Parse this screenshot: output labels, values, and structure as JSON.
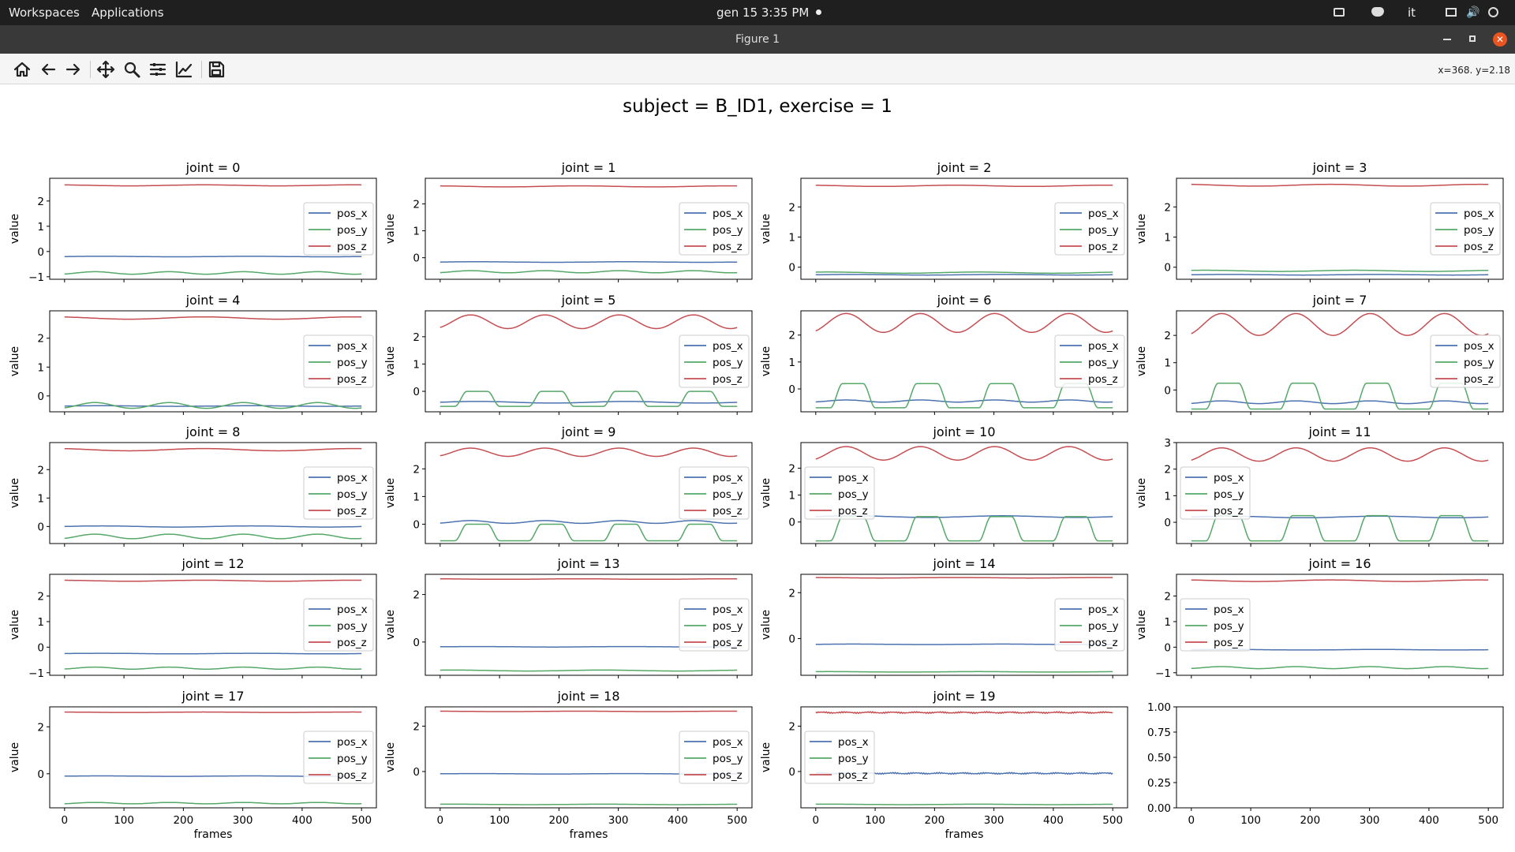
{
  "taskbar": {
    "workspaces": "Workspaces",
    "applications": "Applications",
    "clock": "gen 15   3:35 PM",
    "lang": "it"
  },
  "window": {
    "title": "Figure 1"
  },
  "toolbar": {
    "icons": [
      "home-icon",
      "back-icon",
      "forward-icon",
      "pan-icon",
      "zoom-icon",
      "configure-icon",
      "edit-axis-icon",
      "save-icon"
    ],
    "coords": "x=368. y=2.18"
  },
  "figure_title": "subject = B_ID1, exercise = 1",
  "colors": {
    "pos_x": "#4c72b0",
    "pos_y": "#55a868",
    "pos_z": "#c44e52"
  },
  "chart_data": [
    {
      "type": "line",
      "title": "joint = 0",
      "xlabel": "",
      "ylabel": "value",
      "legend": "right",
      "ylim": [
        -1.1,
        2.9
      ],
      "yticks": [
        -1,
        0,
        1,
        2
      ],
      "xticks": [
        0,
        100,
        200,
        300,
        400,
        500
      ],
      "show_xtick_labels": false,
      "series": [
        {
          "name": "pos_x",
          "pattern": "flat",
          "base": -0.2,
          "amp": 0.01
        },
        {
          "name": "pos_y",
          "pattern": "wave",
          "base": -0.85,
          "amp": 0.05
        },
        {
          "name": "pos_z",
          "pattern": "flat",
          "base": 2.62,
          "amp": 0.02
        }
      ]
    },
    {
      "type": "line",
      "title": "joint = 1",
      "xlabel": "",
      "ylabel": "value",
      "legend": "right",
      "ylim": [
        -0.8,
        2.95
      ],
      "yticks": [
        0,
        1,
        2
      ],
      "xticks": [
        0,
        100,
        200,
        300,
        400,
        500
      ],
      "show_xtick_labels": false,
      "series": [
        {
          "name": "pos_x",
          "pattern": "flat",
          "base": -0.16,
          "amp": 0.01
        },
        {
          "name": "pos_y",
          "pattern": "wave",
          "base": -0.52,
          "amp": 0.04
        },
        {
          "name": "pos_z",
          "pattern": "flat",
          "base": 2.65,
          "amp": 0.02
        }
      ]
    },
    {
      "type": "line",
      "title": "joint = 2",
      "xlabel": "",
      "ylabel": "value",
      "legend": "right",
      "ylim": [
        -0.4,
        2.95
      ],
      "yticks": [
        0,
        1,
        2
      ],
      "xticks": [
        0,
        100,
        200,
        300,
        400,
        500
      ],
      "show_xtick_labels": false,
      "series": [
        {
          "name": "pos_x",
          "pattern": "flat",
          "base": -0.25,
          "amp": 0.01
        },
        {
          "name": "pos_y",
          "pattern": "flat",
          "base": -0.18,
          "amp": 0.02
        },
        {
          "name": "pos_z",
          "pattern": "flat",
          "base": 2.7,
          "amp": 0.02
        }
      ]
    },
    {
      "type": "line",
      "title": "joint = 3",
      "xlabel": "",
      "ylabel": "value",
      "legend": "right",
      "ylim": [
        -0.4,
        2.95
      ],
      "yticks": [
        0,
        1,
        2
      ],
      "xticks": [
        0,
        100,
        200,
        300,
        400,
        500
      ],
      "show_xtick_labels": false,
      "series": [
        {
          "name": "pos_x",
          "pattern": "flat",
          "base": -0.25,
          "amp": 0.01
        },
        {
          "name": "pos_y",
          "pattern": "flat",
          "base": -0.12,
          "amp": 0.02
        },
        {
          "name": "pos_z",
          "pattern": "flat",
          "base": 2.72,
          "amp": 0.03
        }
      ]
    },
    {
      "type": "line",
      "title": "joint = 4",
      "xlabel": "",
      "ylabel": "value",
      "legend": "right",
      "ylim": [
        -0.55,
        2.95
      ],
      "yticks": [
        0,
        1,
        2
      ],
      "xticks": [
        0,
        100,
        200,
        300,
        400,
        500
      ],
      "show_xtick_labels": false,
      "series": [
        {
          "name": "pos_x",
          "pattern": "flat",
          "base": -0.35,
          "amp": 0.01
        },
        {
          "name": "pos_y",
          "pattern": "wave",
          "base": -0.33,
          "amp": 0.1
        },
        {
          "name": "pos_z",
          "pattern": "flat",
          "base": 2.7,
          "amp": 0.04
        }
      ]
    },
    {
      "type": "line",
      "title": "joint = 5",
      "xlabel": "",
      "ylabel": "value",
      "legend": "right",
      "ylim": [
        -0.75,
        2.95
      ],
      "yticks": [
        0,
        1,
        2
      ],
      "xticks": [
        0,
        100,
        200,
        300,
        400,
        500
      ],
      "show_xtick_labels": false,
      "series": [
        {
          "name": "pos_x",
          "pattern": "flat",
          "base": -0.4,
          "amp": 0.03
        },
        {
          "name": "pos_y",
          "pattern": "pulse",
          "base": -0.55,
          "amp": 0.55
        },
        {
          "name": "pos_z",
          "pattern": "wave",
          "base": 2.55,
          "amp": 0.25
        }
      ]
    },
    {
      "type": "line",
      "title": "joint = 6",
      "xlabel": "",
      "ylabel": "value",
      "legend": "right",
      "ylim": [
        -0.85,
        2.9
      ],
      "yticks": [
        0,
        1,
        2
      ],
      "xticks": [
        0,
        100,
        200,
        300,
        400,
        500
      ],
      "show_xtick_labels": false,
      "series": [
        {
          "name": "pos_x",
          "pattern": "wave",
          "base": -0.45,
          "amp": 0.04
        },
        {
          "name": "pos_y",
          "pattern": "pulse",
          "base": -0.7,
          "amp": 0.9
        },
        {
          "name": "pos_z",
          "pattern": "wave",
          "base": 2.45,
          "amp": 0.35
        }
      ]
    },
    {
      "type": "line",
      "title": "joint = 7",
      "xlabel": "",
      "ylabel": "value",
      "legend": "right",
      "ylim": [
        -0.8,
        2.9
      ],
      "yticks": [
        0,
        1,
        2
      ],
      "xticks": [
        0,
        100,
        200,
        300,
        400,
        500
      ],
      "show_xtick_labels": false,
      "series": [
        {
          "name": "pos_x",
          "pattern": "wave",
          "base": -0.45,
          "amp": 0.05
        },
        {
          "name": "pos_y",
          "pattern": "pulse",
          "base": -0.7,
          "amp": 0.95
        },
        {
          "name": "pos_z",
          "pattern": "wave",
          "base": 2.4,
          "amp": 0.4
        }
      ]
    },
    {
      "type": "line",
      "title": "joint = 8",
      "xlabel": "",
      "ylabel": "value",
      "legend": "right",
      "ylim": [
        -0.6,
        2.95
      ],
      "yticks": [
        0,
        1,
        2
      ],
      "xticks": [
        0,
        100,
        200,
        300,
        400,
        500
      ],
      "show_xtick_labels": false,
      "series": [
        {
          "name": "pos_x",
          "pattern": "flat",
          "base": 0.0,
          "amp": 0.02
        },
        {
          "name": "pos_y",
          "pattern": "wave",
          "base": -0.35,
          "amp": 0.08
        },
        {
          "name": "pos_z",
          "pattern": "flat",
          "base": 2.7,
          "amp": 0.04
        }
      ]
    },
    {
      "type": "line",
      "title": "joint = 9",
      "xlabel": "",
      "ylabel": "value",
      "legend": "right",
      "ylim": [
        -0.7,
        2.95
      ],
      "yticks": [
        0,
        1,
        2
      ],
      "xticks": [
        0,
        100,
        200,
        300,
        400,
        500
      ],
      "show_xtick_labels": false,
      "series": [
        {
          "name": "pos_x",
          "pattern": "wave",
          "base": 0.08,
          "amp": 0.05
        },
        {
          "name": "pos_y",
          "pattern": "pulse",
          "base": -0.6,
          "amp": 0.6
        },
        {
          "name": "pos_z",
          "pattern": "wave",
          "base": 2.6,
          "amp": 0.15
        }
      ]
    },
    {
      "type": "line",
      "title": "joint = 10",
      "xlabel": "",
      "ylabel": "value",
      "legend": "left",
      "ylim": [
        -0.8,
        2.95
      ],
      "yticks": [
        0,
        1,
        2
      ],
      "xticks": [
        0,
        100,
        200,
        300,
        400,
        500
      ],
      "show_xtick_labels": false,
      "series": [
        {
          "name": "pos_x",
          "pattern": "flat",
          "base": 0.2,
          "amp": 0.03
        },
        {
          "name": "pos_y",
          "pattern": "pulse",
          "base": -0.7,
          "amp": 0.9
        },
        {
          "name": "pos_z",
          "pattern": "wave",
          "base": 2.55,
          "amp": 0.25
        }
      ]
    },
    {
      "type": "line",
      "title": "joint = 11",
      "xlabel": "",
      "ylabel": "value",
      "legend": "left",
      "ylim": [
        -0.8,
        3.0
      ],
      "yticks": [
        0,
        1,
        2,
        3
      ],
      "xticks": [
        0,
        100,
        200,
        300,
        400,
        500
      ],
      "show_xtick_labels": false,
      "series": [
        {
          "name": "pos_x",
          "pattern": "flat",
          "base": 0.2,
          "amp": 0.03
        },
        {
          "name": "pos_y",
          "pattern": "pulse",
          "base": -0.7,
          "amp": 0.95
        },
        {
          "name": "pos_z",
          "pattern": "wave",
          "base": 2.55,
          "amp": 0.25
        }
      ]
    },
    {
      "type": "line",
      "title": "joint = 12",
      "xlabel": "",
      "ylabel": "value",
      "legend": "right",
      "ylim": [
        -1.1,
        2.85
      ],
      "yticks": [
        -1,
        0,
        1,
        2
      ],
      "xticks": [
        0,
        100,
        200,
        300,
        400,
        500
      ],
      "show_xtick_labels": false,
      "series": [
        {
          "name": "pos_x",
          "pattern": "flat",
          "base": -0.25,
          "amp": 0.01
        },
        {
          "name": "pos_y",
          "pattern": "wave",
          "base": -0.82,
          "amp": 0.04
        },
        {
          "name": "pos_z",
          "pattern": "flat",
          "base": 2.6,
          "amp": 0.02
        }
      ]
    },
    {
      "type": "line",
      "title": "joint = 13",
      "xlabel": "",
      "ylabel": "value",
      "legend": "right",
      "ylim": [
        -1.4,
        2.85
      ],
      "yticks": [
        0,
        2
      ],
      "xticks": [
        0,
        100,
        200,
        300,
        400,
        500
      ],
      "show_xtick_labels": false,
      "series": [
        {
          "name": "pos_x",
          "pattern": "flat",
          "base": -0.2,
          "amp": 0.01
        },
        {
          "name": "pos_y",
          "pattern": "flat",
          "base": -1.2,
          "amp": 0.02
        },
        {
          "name": "pos_z",
          "pattern": "flat",
          "base": 2.65,
          "amp": 0.01
        }
      ]
    },
    {
      "type": "line",
      "title": "joint = 14",
      "xlabel": "",
      "ylabel": "value",
      "legend": "right",
      "ylim": [
        -1.6,
        2.8
      ],
      "yticks": [
        0,
        2
      ],
      "xticks": [
        0,
        100,
        200,
        300,
        400,
        500
      ],
      "show_xtick_labels": false,
      "series": [
        {
          "name": "pos_x",
          "pattern": "flat",
          "base": -0.25,
          "amp": 0.01
        },
        {
          "name": "pos_y",
          "pattern": "flat",
          "base": -1.45,
          "amp": 0.01
        },
        {
          "name": "pos_z",
          "pattern": "flat",
          "base": 2.65,
          "amp": 0.01
        }
      ]
    },
    {
      "type": "line",
      "title": "joint = 16",
      "xlabel": "",
      "ylabel": "value",
      "legend": "left",
      "ylim": [
        -1.1,
        2.85
      ],
      "yticks": [
        -1,
        0,
        1,
        2
      ],
      "xticks": [
        0,
        100,
        200,
        300,
        400,
        500
      ],
      "show_xtick_labels": false,
      "series": [
        {
          "name": "pos_x",
          "pattern": "flat",
          "base": -0.1,
          "amp": 0.01
        },
        {
          "name": "pos_y",
          "pattern": "wave",
          "base": -0.8,
          "amp": 0.04
        },
        {
          "name": "pos_z",
          "pattern": "flat",
          "base": 2.6,
          "amp": 0.03
        }
      ]
    },
    {
      "type": "line",
      "title": "joint = 17",
      "xlabel": "frames",
      "ylabel": "value",
      "legend": "right",
      "ylim": [
        -1.45,
        2.85
      ],
      "yticks": [
        0,
        2
      ],
      "xticks": [
        0,
        100,
        200,
        300,
        400,
        500
      ],
      "show_xtick_labels": true,
      "series": [
        {
          "name": "pos_x",
          "pattern": "flat",
          "base": -0.1,
          "amp": 0.01
        },
        {
          "name": "pos_y",
          "pattern": "wave",
          "base": -1.25,
          "amp": 0.03
        },
        {
          "name": "pos_z",
          "pattern": "flat",
          "base": 2.62,
          "amp": 0.01
        }
      ]
    },
    {
      "type": "line",
      "title": "joint = 18",
      "xlabel": "frames",
      "ylabel": "value",
      "legend": "right",
      "ylim": [
        -1.6,
        2.85
      ],
      "yticks": [
        0,
        2
      ],
      "xticks": [
        0,
        100,
        200,
        300,
        400,
        500
      ],
      "show_xtick_labels": true,
      "series": [
        {
          "name": "pos_x",
          "pattern": "flat",
          "base": -0.1,
          "amp": 0.01
        },
        {
          "name": "pos_y",
          "pattern": "flat",
          "base": -1.45,
          "amp": 0.01
        },
        {
          "name": "pos_z",
          "pattern": "flat",
          "base": 2.65,
          "amp": 0.01
        }
      ]
    },
    {
      "type": "line",
      "title": "joint = 19",
      "xlabel": "frames",
      "ylabel": "value",
      "legend": "left",
      "ylim": [
        -1.6,
        2.85
      ],
      "yticks": [
        0,
        2
      ],
      "xticks": [
        0,
        100,
        200,
        300,
        400,
        500
      ],
      "show_xtick_labels": true,
      "series": [
        {
          "name": "pos_x",
          "pattern": "noisy",
          "base": -0.08,
          "amp": 0.04
        },
        {
          "name": "pos_y",
          "pattern": "flat",
          "base": -1.45,
          "amp": 0.01
        },
        {
          "name": "pos_z",
          "pattern": "noisy",
          "base": 2.6,
          "amp": 0.04
        }
      ]
    },
    {
      "type": "line",
      "title": "",
      "xlabel": "",
      "ylabel": "",
      "legend": "none",
      "ylim": [
        0,
        1
      ],
      "yticks": [
        0.0,
        0.25,
        0.5,
        0.75,
        1.0
      ],
      "ytick_labels": [
        "0.00",
        "0.25",
        "0.50",
        "0.75",
        "1.00"
      ],
      "xticks": [
        0,
        100,
        200,
        300,
        400,
        500
      ],
      "show_xtick_labels": true,
      "series": []
    }
  ]
}
